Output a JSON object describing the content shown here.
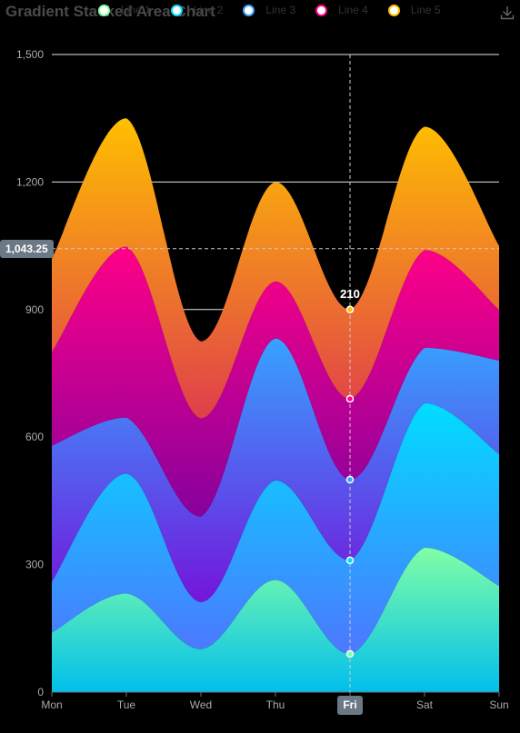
{
  "title": "Gradient Stacked Area Chart",
  "legend": [
    {
      "name": "Line 1",
      "color": "#80FFA5"
    },
    {
      "name": "Line 2",
      "color": "#00DDFF"
    },
    {
      "name": "Line 3",
      "color": "#37A2FF"
    },
    {
      "name": "Line 4",
      "color": "#FF0087"
    },
    {
      "name": "Line 5",
      "color": "#FFBF00"
    }
  ],
  "toolbox": {
    "save_icon": "download-icon"
  },
  "axis_pointer": {
    "y_value_label": "1,043.25",
    "x_category_label": "Fri",
    "top_label": "210"
  },
  "chart_data": {
    "type": "area",
    "stacked": true,
    "smooth": true,
    "title": "Gradient Stacked Area Chart",
    "categories": [
      "Mon",
      "Tue",
      "Wed",
      "Thu",
      "Fri",
      "Sat",
      "Sun"
    ],
    "yticks": [
      "0",
      "300",
      "600",
      "900",
      "1,200",
      "1,500"
    ],
    "ylim": [
      0,
      1500
    ],
    "grid": "horizontal",
    "series": [
      {
        "name": "Line 1",
        "values": [
          140,
          232,
          101,
          264,
          90,
          340,
          250
        ],
        "top": "#80FFA5",
        "bottom": "#01BFEC"
      },
      {
        "name": "Line 2",
        "values": [
          120,
          282,
          111,
          234,
          220,
          340,
          310
        ],
        "top": "#00DDFF",
        "bottom": "#4D77FF"
      },
      {
        "name": "Line 3",
        "values": [
          320,
          132,
          201,
          334,
          190,
          130,
          220
        ],
        "top": "#37A2FF",
        "bottom": "#7415DB"
      },
      {
        "name": "Line 4",
        "values": [
          220,
          402,
          231,
          134,
          190,
          230,
          120
        ],
        "top": "#FF0087",
        "bottom": "#87009D"
      },
      {
        "name": "Line 5",
        "values": [
          220,
          302,
          181,
          234,
          210,
          290,
          150
        ],
        "top": "#FFBF00",
        "bottom": "#E03E4C"
      }
    ]
  }
}
